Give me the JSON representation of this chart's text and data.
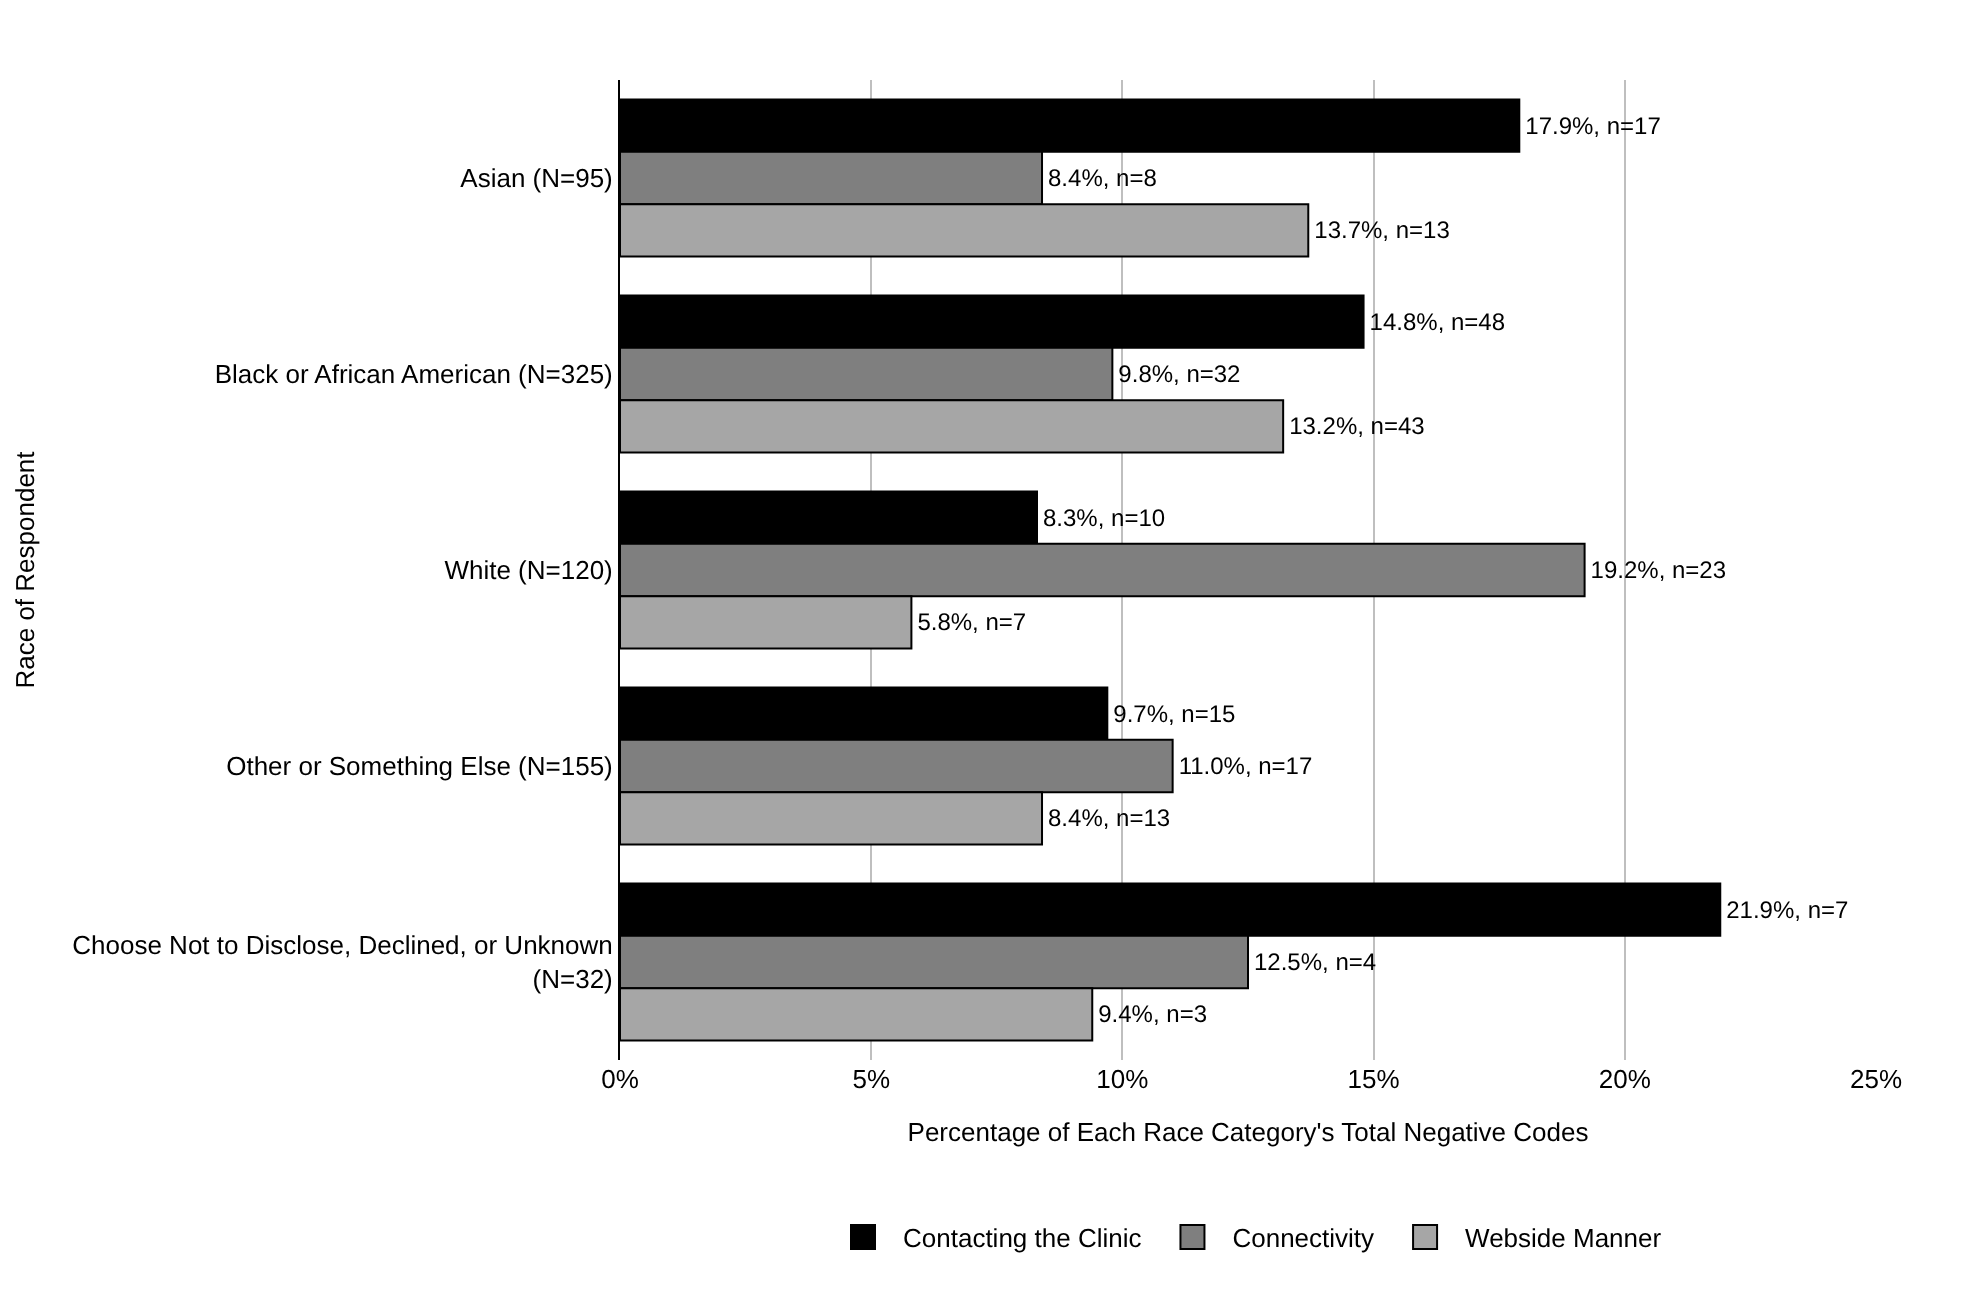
{
  "chart_data": {
    "type": "bar",
    "orientation": "horizontal",
    "xlabel": "Percentage of Each Race Category's Total Negative Codes",
    "ylabel": "Race of Respondent",
    "categories": [
      "Asian (N=95)",
      "Black or African American (N=325)",
      "White (N=120)",
      "Other or Something Else (N=155)",
      "Choose Not to Disclose, Declined, or Unknown (N=32)"
    ],
    "series": [
      {
        "name": "Contacting the Clinic",
        "color": "#000000",
        "values": [
          17.9,
          14.8,
          8.3,
          9.7,
          21.9
        ],
        "value_labels": [
          "17.9%, n=17",
          "14.8%, n=48",
          "8.3%, n=10",
          "9.7%, n=15",
          "21.9%, n=7"
        ]
      },
      {
        "name": "Connectivity",
        "color": "#7f7f7f",
        "values": [
          8.4,
          9.8,
          19.2,
          11.0,
          12.5
        ],
        "value_labels": [
          "8.4%, n=8",
          "9.8%, n=32",
          "19.2%, n=23",
          "11.0%, n=17",
          "12.5%, n=4"
        ]
      },
      {
        "name": "Webside Manner",
        "color": "#a6a6a6",
        "values": [
          13.7,
          13.2,
          5.8,
          8.4,
          9.4
        ],
        "value_labels": [
          "13.7%, n=13",
          "13.2%, n=43",
          "5.8%, n=7",
          "8.4%, n=13",
          "9.4%, n=3"
        ]
      }
    ],
    "xlim": [
      0,
      25
    ],
    "xticks": [
      {
        "value": 0,
        "label": "0%"
      },
      {
        "value": 5,
        "label": "5%"
      },
      {
        "value": 10,
        "label": "10%"
      },
      {
        "value": 15,
        "label": "15%"
      },
      {
        "value": 20,
        "label": "20%"
      },
      {
        "value": 25,
        "label": "25%"
      }
    ],
    "grid": "x",
    "legend": "bottom"
  }
}
